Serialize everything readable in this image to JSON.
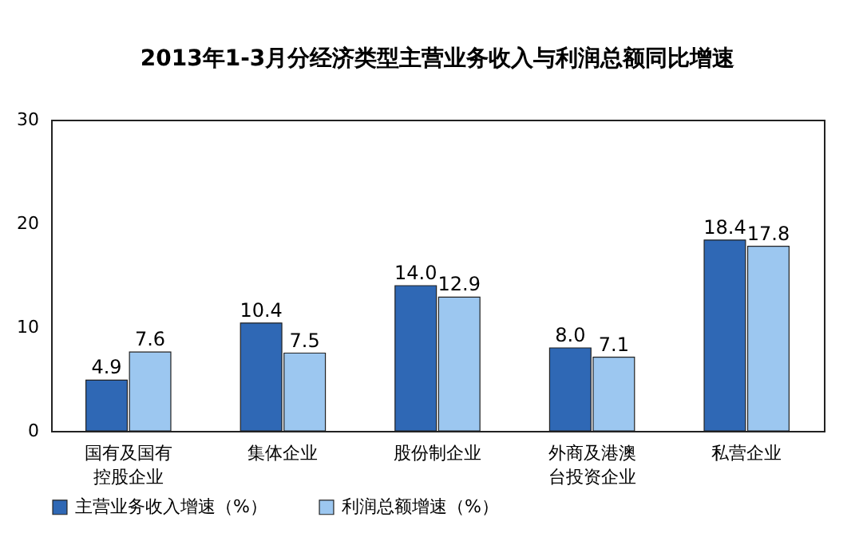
{
  "chart_data": {
    "type": "bar",
    "title": "2013年1-3月分经济类型主营业务收入与利润总额同比增速",
    "categories": [
      "国有及国有控股企业",
      "集体企业",
      "股份制企业",
      "外商及港澳台投资企业",
      "私营企业"
    ],
    "series": [
      {
        "name": "主营业务收入增速（%）",
        "color": "#2f68b5",
        "values": [
          4.9,
          10.4,
          14.0,
          8.0,
          18.4
        ],
        "value_labels": [
          "4.9",
          "10.4",
          "14.0",
          "8.0",
          "18.4"
        ]
      },
      {
        "name": "利润总额增速（%）",
        "color": "#9cc7f0",
        "values": [
          7.6,
          7.5,
          12.9,
          7.1,
          17.8
        ],
        "value_labels": [
          "7.6",
          "7.5",
          "12.9",
          "7.1",
          "17.8"
        ]
      }
    ],
    "ylim": [
      0,
      30
    ],
    "yticks": [
      0,
      10,
      20,
      30
    ],
    "grid": false,
    "legend": "bottom"
  }
}
